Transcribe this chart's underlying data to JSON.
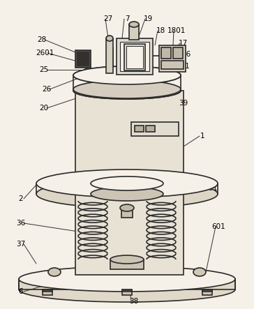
{
  "background_color": "#f5f0e8",
  "line_color": "#2a2a2a",
  "line_width": 1.2,
  "fig_width": 3.64,
  "fig_height": 4.43,
  "dpi": 100
}
